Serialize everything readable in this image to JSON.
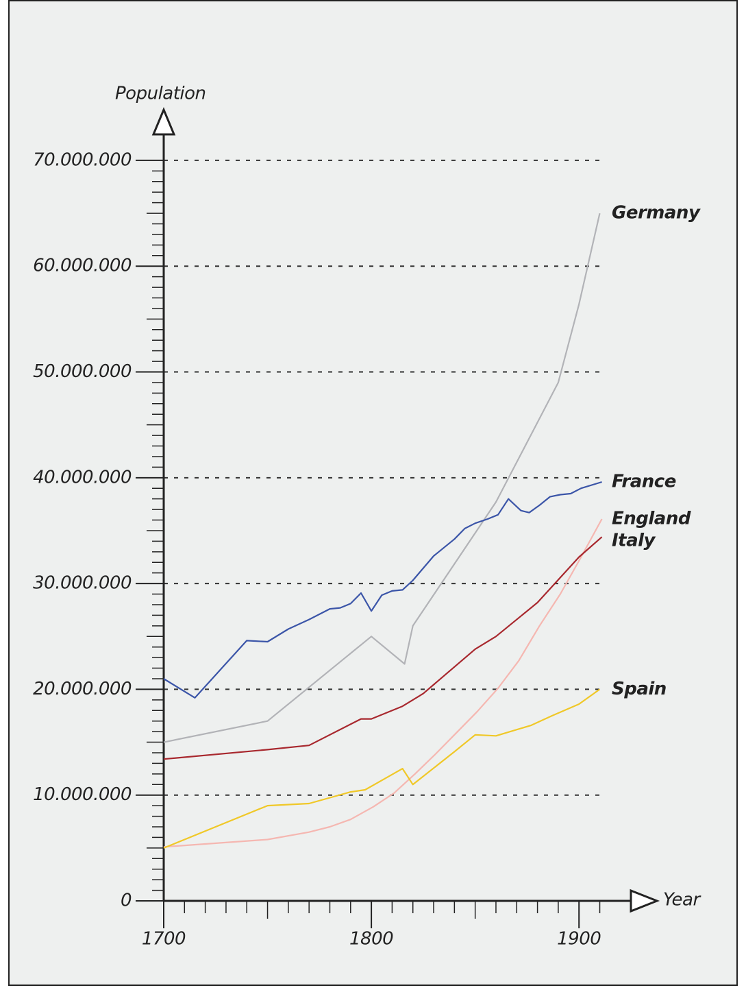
{
  "chart_data": {
    "type": "line",
    "ylabel": "Population",
    "xlabel": "Year",
    "xlim": [
      1700,
      1925
    ],
    "ylim": [
      0,
      74500000
    ],
    "xticks": [
      1700,
      1800,
      1900
    ],
    "yticks": [
      0,
      {
        "value": 10000000,
        "label": "10.000.000"
      },
      {
        "value": 20000000,
        "label": "20.000.000"
      },
      {
        "value": 30000000,
        "label": "30.000.000"
      },
      {
        "value": 40000000,
        "label": "40.000.000"
      },
      {
        "value": 50000000,
        "label": "50.000.000"
      },
      {
        "value": 60000000,
        "label": "60.000.000"
      },
      {
        "value": 70000000,
        "label": "70.000.000"
      }
    ],
    "grid": true,
    "series": [
      {
        "name": "Germany",
        "color": "#b2b3b7",
        "x": [
          1700,
          1750,
          1800,
          1816,
          1820,
          1860,
          1890,
          1900,
          1910
        ],
        "values": [
          15000000,
          17000000,
          25000000,
          22400000,
          26000000,
          37700000,
          49000000,
          56400000,
          65000000
        ]
      },
      {
        "name": "France",
        "color": "#3b55a8",
        "x": [
          1700,
          1715,
          1740,
          1750,
          1760,
          1770,
          1780,
          1785,
          1790,
          1795,
          1800,
          1805,
          1810,
          1815,
          1820,
          1830,
          1840,
          1845,
          1850,
          1856,
          1861,
          1866,
          1872,
          1876,
          1881,
          1886,
          1891,
          1896,
          1901,
          1911
        ],
        "values": [
          21000000,
          19200000,
          24600000,
          24500000,
          25700000,
          26600000,
          27600000,
          27700000,
          28100000,
          29100000,
          27400000,
          28900000,
          29300000,
          29400000,
          30300000,
          32600000,
          34200000,
          35200000,
          35700000,
          36100000,
          36500000,
          38000000,
          36900000,
          36700000,
          37400000,
          38200000,
          38400000,
          38500000,
          39000000,
          39600000
        ]
      },
      {
        "name": "England",
        "color": "#f5b7b1",
        "x": [
          1700,
          1750,
          1770,
          1780,
          1790,
          1801,
          1811,
          1821,
          1831,
          1841,
          1851,
          1861,
          1871,
          1881,
          1891,
          1901,
          1911
        ],
        "values": [
          5100000,
          5800000,
          6500000,
          7000000,
          7700000,
          8900000,
          10200000,
          12000000,
          13900000,
          15900000,
          17900000,
          20100000,
          22700000,
          26000000,
          29000000,
          32500000,
          36100000
        ]
      },
      {
        "name": "Italy",
        "color": "#a8282e",
        "x": [
          1700,
          1750,
          1770,
          1795,
          1800,
          1815,
          1825,
          1850,
          1860,
          1880,
          1900,
          1911
        ],
        "values": [
          13400000,
          14300000,
          14700000,
          17200000,
          17200000,
          18400000,
          19600000,
          23800000,
          25000000,
          28200000,
          32500000,
          34400000
        ]
      },
      {
        "name": "Spain",
        "color": "#f0c828",
        "x": [
          1700,
          1750,
          1770,
          1790,
          1797,
          1815,
          1820,
          1840,
          1850,
          1860,
          1877,
          1887,
          1900,
          1910
        ],
        "values": [
          5000000,
          9000000,
          9200000,
          10300000,
          10500000,
          12500000,
          11000000,
          14100000,
          15700000,
          15600000,
          16600000,
          17500000,
          18600000,
          20000000
        ]
      }
    ]
  }
}
